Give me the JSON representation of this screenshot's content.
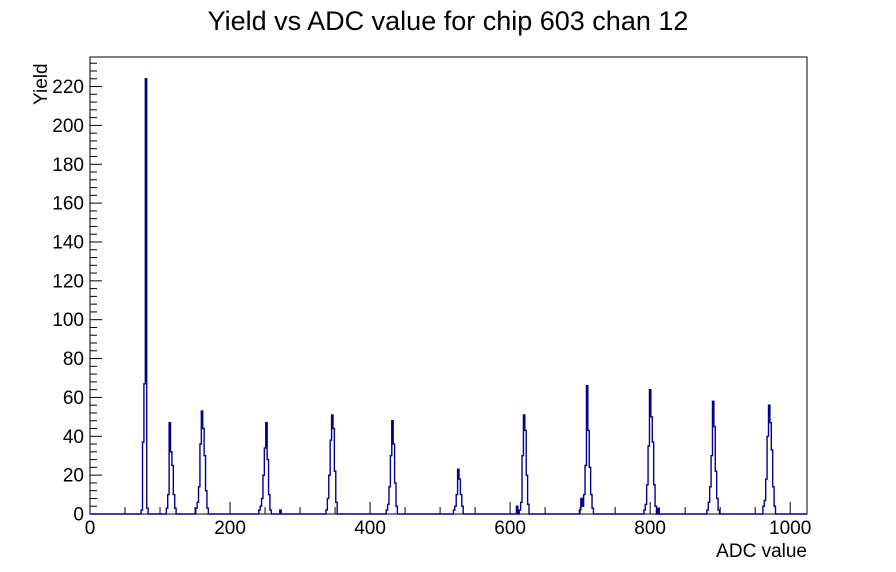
{
  "chart_data": {
    "type": "histogram",
    "title": "Yield vs ADC value for chip 603 chan 12",
    "xlabel": "ADC value",
    "ylabel": "Yield",
    "xlim": [
      0,
      1024
    ],
    "ylim": [
      0,
      235.2
    ],
    "x_tick_labels": [
      "0",
      "200",
      "400",
      "600",
      "800",
      "1000"
    ],
    "x_major_values": [
      0,
      200,
      400,
      600,
      800,
      1000
    ],
    "x_minor_step": 50,
    "y_tick_labels": [
      "0",
      "20",
      "40",
      "60",
      "80",
      "100",
      "120",
      "140",
      "160",
      "180",
      "200",
      "220"
    ],
    "y_major_values": [
      0,
      20,
      40,
      60,
      80,
      100,
      120,
      140,
      160,
      180,
      200,
      220
    ],
    "y_minor_step": 4,
    "grid": false,
    "legend": false,
    "line_color": "#00008c",
    "axis_color": "#000000",
    "background_color": "#ffffff",
    "bin_width": 2,
    "bins": [
      [
        74,
        2
      ],
      [
        76,
        37
      ],
      [
        78,
        67
      ],
      [
        80,
        224
      ],
      [
        82,
        3
      ],
      [
        110,
        3
      ],
      [
        112,
        10
      ],
      [
        114,
        47
      ],
      [
        116,
        32
      ],
      [
        118,
        25
      ],
      [
        120,
        10
      ],
      [
        122,
        3
      ],
      [
        152,
        3
      ],
      [
        154,
        6
      ],
      [
        156,
        14
      ],
      [
        158,
        36
      ],
      [
        160,
        53
      ],
      [
        162,
        44
      ],
      [
        164,
        30
      ],
      [
        166,
        12
      ],
      [
        168,
        3
      ],
      [
        242,
        2
      ],
      [
        244,
        4
      ],
      [
        246,
        8
      ],
      [
        248,
        20
      ],
      [
        250,
        34
      ],
      [
        252,
        47
      ],
      [
        254,
        28
      ],
      [
        256,
        10
      ],
      [
        258,
        2
      ],
      [
        272,
        2
      ],
      [
        338,
        2
      ],
      [
        340,
        8
      ],
      [
        342,
        20
      ],
      [
        344,
        38
      ],
      [
        346,
        51
      ],
      [
        348,
        44
      ],
      [
        350,
        22
      ],
      [
        352,
        6
      ],
      [
        424,
        2
      ],
      [
        426,
        5
      ],
      [
        428,
        14
      ],
      [
        430,
        30
      ],
      [
        432,
        48
      ],
      [
        434,
        36
      ],
      [
        436,
        16
      ],
      [
        438,
        4
      ],
      [
        520,
        2
      ],
      [
        522,
        4
      ],
      [
        524,
        10
      ],
      [
        526,
        23
      ],
      [
        528,
        18
      ],
      [
        530,
        10
      ],
      [
        532,
        4
      ],
      [
        610,
        4
      ],
      [
        614,
        2
      ],
      [
        616,
        6
      ],
      [
        618,
        30
      ],
      [
        620,
        51
      ],
      [
        622,
        43
      ],
      [
        624,
        20
      ],
      [
        626,
        5
      ],
      [
        700,
        2
      ],
      [
        702,
        8
      ],
      [
        704,
        4
      ],
      [
        706,
        10
      ],
      [
        708,
        25
      ],
      [
        710,
        66
      ],
      [
        712,
        43
      ],
      [
        714,
        24
      ],
      [
        716,
        10
      ],
      [
        718,
        3
      ],
      [
        792,
        2
      ],
      [
        794,
        5
      ],
      [
        796,
        15
      ],
      [
        798,
        35
      ],
      [
        800,
        64
      ],
      [
        802,
        50
      ],
      [
        804,
        37
      ],
      [
        806,
        15
      ],
      [
        808,
        4
      ],
      [
        812,
        3
      ],
      [
        882,
        2
      ],
      [
        884,
        6
      ],
      [
        886,
        14
      ],
      [
        888,
        30
      ],
      [
        890,
        58
      ],
      [
        892,
        45
      ],
      [
        894,
        22
      ],
      [
        896,
        8
      ],
      [
        898,
        2
      ],
      [
        962,
        4
      ],
      [
        964,
        7
      ],
      [
        966,
        18
      ],
      [
        968,
        40
      ],
      [
        970,
        56
      ],
      [
        972,
        47
      ],
      [
        974,
        33
      ],
      [
        976,
        14
      ],
      [
        978,
        4
      ]
    ]
  }
}
